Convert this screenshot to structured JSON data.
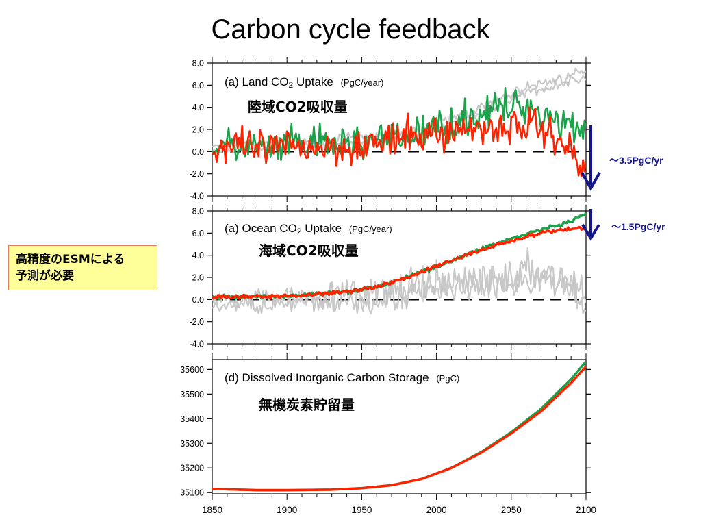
{
  "title": "Carbon cycle feedback",
  "note": {
    "line1": "高精度のESMによる",
    "line2": "予測が必要"
  },
  "arrows": {
    "land": "～3.5PgC/yr",
    "ocean": "～1.5PgC/yr"
  },
  "colors": {
    "green": "#1aa34a",
    "red": "#ff2200",
    "gray": "#c8c8c8",
    "arrow": "#14148c"
  },
  "chart_data": [
    {
      "type": "line",
      "label_prefix": "(a) Land CO",
      "label_sub": "2",
      "label_suffix": " Uptake",
      "unit": "(PgC/year)",
      "jp_label": "陸域CO2吸収量",
      "xlim": [
        1850,
        2100
      ],
      "ylim": [
        -4.0,
        8.0
      ],
      "yticks": [
        "8.0",
        "6.0",
        "4.0",
        "2.0",
        "0.0",
        "-2.0",
        "-4.0"
      ],
      "reference_line": 0.0,
      "series_knots": {
        "green": {
          "x": [
            1850,
            1870,
            1890,
            1910,
            1930,
            1950,
            1970,
            1990,
            2010,
            2030,
            2050,
            2060,
            2070,
            2080,
            2090,
            2100
          ],
          "y": [
            0.3,
            0.5,
            0.2,
            0.7,
            0.6,
            0.8,
            1.0,
            1.8,
            2.5,
            3.5,
            4.0,
            4.2,
            3.5,
            3.0,
            2.5,
            2.0
          ]
        },
        "red": {
          "x": [
            1850,
            1870,
            1890,
            1910,
            1930,
            1950,
            1970,
            1990,
            2010,
            2030,
            2050,
            2060,
            2070,
            2080,
            2090,
            2100
          ],
          "y": [
            0.2,
            0.3,
            0.2,
            0.5,
            0.4,
            0.6,
            0.9,
            1.5,
            1.8,
            2.2,
            2.2,
            2.5,
            2.0,
            1.5,
            0.0,
            -2.0
          ]
        },
        "gray": {
          "x": [
            1850,
            1980,
            2000,
            2020,
            2040,
            2060,
            2080,
            2100
          ],
          "y": [
            0.5,
            1.6,
            2.5,
            3.5,
            4.5,
            5.8,
            6.5,
            7.2
          ]
        }
      }
    },
    {
      "type": "line",
      "label_prefix": "(a) Ocean CO",
      "label_sub": "2",
      "label_suffix": " Uptake",
      "unit": "(PgC/year)",
      "jp_label": "海域CO2吸収量",
      "xlim": [
        1850,
        2100
      ],
      "ylim": [
        -4.0,
        8.0
      ],
      "yticks": [
        "8.0",
        "6.0",
        "4.0",
        "2.0",
        "0.0",
        "-2.0",
        "-4.0"
      ],
      "reference_line": 0.0,
      "series_knots": {
        "green": {
          "x": [
            1850,
            1900,
            1930,
            1950,
            1970,
            1990,
            2010,
            2030,
            2050,
            2070,
            2090,
            2100
          ],
          "y": [
            0.2,
            0.3,
            0.6,
            0.9,
            1.5,
            2.5,
            3.5,
            4.6,
            5.5,
            6.3,
            7.0,
            7.8
          ]
        },
        "red": {
          "x": [
            1850,
            1900,
            1930,
            1950,
            1970,
            1990,
            2010,
            2030,
            2050,
            2070,
            2090,
            2100
          ],
          "y": [
            0.2,
            0.3,
            0.6,
            0.9,
            1.5,
            2.5,
            3.5,
            4.5,
            5.3,
            6.0,
            6.4,
            6.4
          ]
        },
        "gray": {
          "x": [
            1850,
            1950,
            1970,
            1990,
            2010,
            2030,
            2050,
            2070,
            2090,
            2100
          ],
          "y": [
            0.0,
            0.5,
            0.8,
            1.0,
            1.5,
            1.8,
            2.0,
            2.5,
            1.5,
            0.0
          ]
        }
      }
    },
    {
      "type": "line",
      "label_prefix": "(d) Dissolved Inorganic Carbon Storage",
      "label_sub": "",
      "label_suffix": "",
      "unit": "(PgC)",
      "jp_label": "無機炭素貯留量",
      "xlim": [
        1850,
        2100
      ],
      "ylim": [
        35095,
        35640
      ],
      "yticks": [
        "35600",
        "35500",
        "35400",
        "35300",
        "35200",
        "35100"
      ],
      "ytick_values": [
        35600,
        35500,
        35400,
        35300,
        35200,
        35100
      ],
      "xticks": [
        "1850",
        "1900",
        "1950",
        "2000",
        "2050",
        "2100"
      ],
      "xtick_values": [
        1850,
        1900,
        1950,
        2000,
        2050,
        2100
      ],
      "series_knots": {
        "green": {
          "x": [
            1850,
            1880,
            1900,
            1930,
            1950,
            1970,
            1990,
            2010,
            2030,
            2050,
            2070,
            2090,
            2100
          ],
          "y": [
            35115,
            35110,
            35110,
            35112,
            35118,
            35130,
            35155,
            35200,
            35265,
            35345,
            35440,
            35560,
            35632
          ]
        },
        "red": {
          "x": [
            1850,
            1880,
            1900,
            1930,
            1950,
            1970,
            1990,
            2010,
            2030,
            2050,
            2070,
            2090,
            2100
          ],
          "y": [
            35115,
            35110,
            35110,
            35112,
            35118,
            35130,
            35155,
            35200,
            35262,
            35340,
            35430,
            35545,
            35612
          ]
        }
      }
    }
  ]
}
